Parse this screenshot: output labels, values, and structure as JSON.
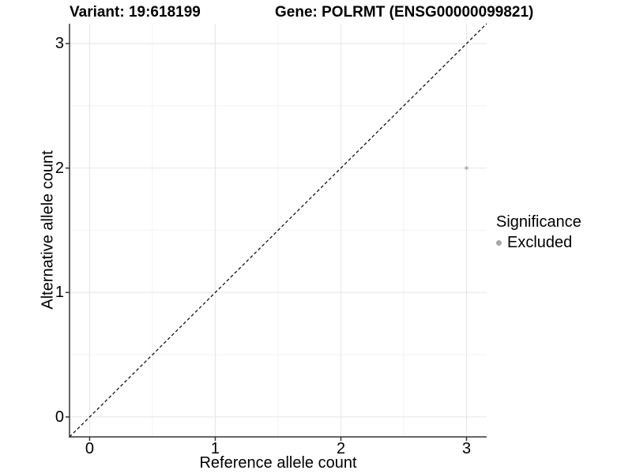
{
  "titles": {
    "variant": "Variant: 19:618199",
    "gene": "Gene: POLRMT (ENSG00000099821)"
  },
  "chart_data": {
    "type": "scatter",
    "xlabel": "Reference allele count",
    "ylabel": "Alternative allele count",
    "xlim": [
      -0.16,
      3.16
    ],
    "ylim": [
      -0.16,
      3.16
    ],
    "xticks": [
      "0",
      "1",
      "2",
      "3"
    ],
    "yticks": [
      "0",
      "1",
      "2",
      "3"
    ],
    "xtick_values": [
      0,
      1,
      2,
      3
    ],
    "ytick_values": [
      0,
      1,
      2,
      3
    ],
    "minor_tick_values": [
      0.5,
      1.5,
      2.5
    ],
    "grid": true,
    "points": [
      {
        "x": 3,
        "y": 2,
        "significance": "Excluded"
      }
    ],
    "identity_line": {
      "from": "corner-to-corner",
      "style": "dashed",
      "color": "#000000"
    },
    "legend": {
      "title": "Significance",
      "position": "right",
      "items": [
        {
          "label": "Excluded",
          "color": "#a8a8a8"
        }
      ]
    },
    "colors": {
      "point": "#b3b3b3",
      "axis_line": "#333333",
      "major_grid": "#e5e5e5",
      "minor_grid": "#f2f2f2",
      "text": "#000000",
      "background": "#ffffff"
    }
  }
}
